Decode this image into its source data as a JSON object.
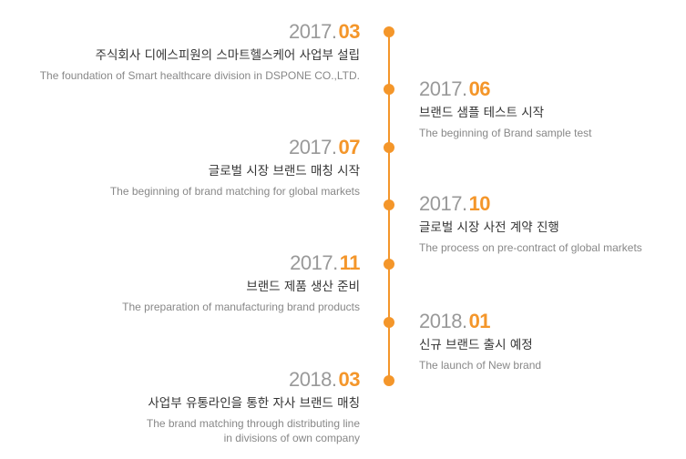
{
  "colors": {
    "accent": "#f4962a",
    "year": "#999999",
    "title": "#333333",
    "description": "#888888"
  },
  "timeline": [
    {
      "year": "2017.",
      "month": "03",
      "title": "주식회사 디에스피원의 스마트헬스케어 사업부 설립",
      "description": "The foundation of Smart healthcare division in DSPONE CO.,LTD."
    },
    {
      "year": "2017.",
      "month": "06",
      "title": "브랜드 샘플 테스트 시작",
      "description": "The beginning of  Brand sample test"
    },
    {
      "year": "2017.",
      "month": "07",
      "title": "글로벌 시장 브랜드 매칭 시작",
      "description": "The beginning of brand matching for global markets"
    },
    {
      "year": "2017.",
      "month": "10",
      "title": "글로벌 시장 사전 계약 진행",
      "description": "The process on pre-contract of global markets"
    },
    {
      "year": "2017.",
      "month": "11",
      "title": "브랜드 제품 생산 준비",
      "description": "The preparation of manufacturing brand products"
    },
    {
      "year": "2018.",
      "month": "01",
      "title": "신규 브랜드 출시 예정",
      "description": "The launch of New brand"
    },
    {
      "year": "2018.",
      "month": "03",
      "title": "사업부 유통라인을 통한 자사 브랜드 매칭",
      "description": "The brand matching through distributing line\nin divisions of own company"
    }
  ]
}
